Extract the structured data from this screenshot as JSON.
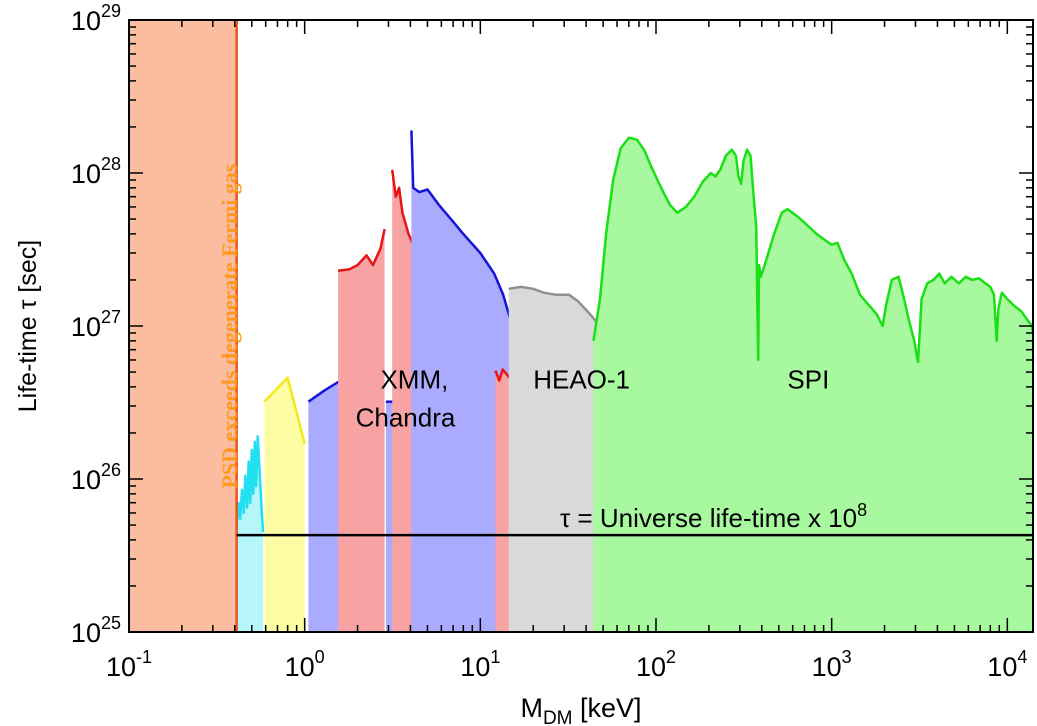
{
  "chart_data": {
    "type": "area",
    "xlabel": "M",
    "xlabel_sub": "DM",
    "xlabel_unit": " [keV]",
    "ylabel": "Life-time τ [sec]",
    "xscale": "log",
    "yscale": "log",
    "xlim": [
      0.1,
      14000
    ],
    "ylim": [
      1e+25,
      1e+29
    ],
    "x_ticks": [
      {
        "value": 0.1,
        "base": "10",
        "exp": "-1"
      },
      {
        "value": 1,
        "base": "10",
        "exp": "0"
      },
      {
        "value": 10,
        "base": "10",
        "exp": "1"
      },
      {
        "value": 100,
        "base": "10",
        "exp": "2"
      },
      {
        "value": 1000,
        "base": "10",
        "exp": "3"
      },
      {
        "value": 10000,
        "base": "10",
        "exp": "4"
      }
    ],
    "y_ticks": [
      {
        "value": 1e+25,
        "base": "10",
        "exp": "25"
      },
      {
        "value": 1e+26,
        "base": "10",
        "exp": "26"
      },
      {
        "value": 1e+27,
        "base": "10",
        "exp": "27"
      },
      {
        "value": 1e+28,
        "base": "10",
        "exp": "28"
      },
      {
        "value": 1e+29,
        "base": "10",
        "exp": "29"
      }
    ],
    "excluded_region": {
      "label": "PSD exceeds degenerate Fermi gas",
      "x_max": 0.41,
      "fill": "#fbbca0",
      "edge": "#e8541a",
      "label_color": "#ff9a1e"
    },
    "reference_line": {
      "label": "τ = Universe life-time x 10",
      "label_exp": "8",
      "y": 4.3e+25,
      "x_start": 0.41,
      "x_end": 14000
    },
    "region_labels": [
      {
        "id": "xmm",
        "lines": [
          "XMM,",
          "Chandra"
        ]
      },
      {
        "id": "heao",
        "lines": [
          "HEAO-1"
        ]
      },
      {
        "id": "spi",
        "lines": [
          "SPI"
        ]
      }
    ],
    "series": [
      {
        "id": "cyan",
        "fill": "#b6f6fb",
        "line": "#22e0f0",
        "points": [
          [
            0.41,
            5e+25
          ],
          [
            0.42,
            7e+25
          ],
          [
            0.43,
            5.5e+25
          ],
          [
            0.44,
            8.5e+25
          ],
          [
            0.45,
            6e+25
          ],
          [
            0.46,
            1.05e+26
          ],
          [
            0.47,
            6.5e+25
          ],
          [
            0.48,
            1.3e+26
          ],
          [
            0.49,
            7e+25
          ],
          [
            0.5,
            1.55e+26
          ],
          [
            0.51,
            8e+25
          ],
          [
            0.52,
            1.75e+26
          ],
          [
            0.53,
            9e+25
          ],
          [
            0.54,
            1.9e+26
          ],
          [
            0.555,
            1.1e+26
          ],
          [
            0.57,
            6e+25
          ],
          [
            0.58,
            4.5e+25
          ]
        ]
      },
      {
        "id": "yellow",
        "fill": "#fcfda4",
        "line": "#f2ea16",
        "points": [
          [
            0.59,
            3.2e+26
          ],
          [
            0.8,
            4.6e+26
          ],
          [
            1.0,
            1.7e+26
          ]
        ]
      },
      {
        "id": "blue-low",
        "fill": "#aaaaff",
        "line": "#1515d8",
        "points": [
          [
            1.05,
            3.2e+26
          ],
          [
            1.3,
            3.8e+26
          ],
          [
            1.6,
            4.4e+26
          ]
        ]
      },
      {
        "id": "red-xmm",
        "fill": "#f7a3a3",
        "line": "#e81515",
        "points": [
          [
            1.55,
            2.3e+27
          ],
          [
            1.8,
            2.35e+27
          ],
          [
            2.0,
            2.5e+27
          ],
          [
            2.25,
            2.9e+27
          ],
          [
            2.45,
            2.5e+27
          ],
          [
            2.7,
            3.2e+27
          ],
          [
            2.85,
            4.3e+27
          ]
        ]
      },
      {
        "id": "blue-mid",
        "fill": "#aaaaff",
        "line": "#1515d8",
        "points": [
          [
            2.9,
            3.2e+26
          ],
          [
            3.2,
            3.2e+26
          ]
        ]
      },
      {
        "id": "red-chandra",
        "fill": "#f7a3a3",
        "line": "#e81515",
        "points": [
          [
            3.15,
            1.05e+28
          ],
          [
            3.3,
            7e+27
          ],
          [
            3.45,
            8e+27
          ],
          [
            3.6,
            5.5e+27
          ],
          [
            3.9,
            4e+27
          ],
          [
            4.2,
            3.3e+27
          ],
          [
            4.6,
            2.5e+27
          ],
          [
            5.0,
            1.8e+27
          ],
          [
            5.5,
            1.6e+27
          ],
          [
            6.0,
            1.75e+27
          ],
          [
            6.5,
            1.55e+27
          ],
          [
            7.0,
            1.8e+27
          ],
          [
            7.6,
            1.5e+27
          ],
          [
            8.2,
            1.65e+27
          ],
          [
            9.0,
            1.3e+27
          ],
          [
            9.8,
            1.6e+27
          ],
          [
            10.4,
            1.2e+27
          ],
          [
            11.0,
            1e+27
          ],
          [
            11.5,
            6.8e+26
          ]
        ]
      },
      {
        "id": "blue-main",
        "fill": "#aaaaff",
        "line": "#1515d8",
        "points": [
          [
            4.05,
            1.9e+28
          ],
          [
            4.15,
            8e+27
          ],
          [
            4.5,
            7.5e+27
          ],
          [
            5.0,
            7.8e+27
          ],
          [
            5.8,
            6.2e+27
          ],
          [
            6.8,
            5e+27
          ],
          [
            8.0,
            4e+27
          ],
          [
            10.0,
            3e+27
          ],
          [
            12.0,
            2.2e+27
          ],
          [
            13.5,
            1.6e+27
          ],
          [
            15.0,
            1.05e+27
          ],
          [
            16.5,
            6.8e+26
          ],
          [
            18.0,
            4.2e+26
          ],
          [
            19.5,
            3.4e+26
          ],
          [
            21.0,
            1.8e+26
          ],
          [
            22.5,
            8e+25
          ],
          [
            23.5,
            4.3e+25
          ]
        ]
      },
      {
        "id": "red-small",
        "fill": "#f7a3a3",
        "line": "#e81515",
        "points": [
          [
            12.2,
            5.1e+26
          ],
          [
            12.8,
            4.4e+26
          ],
          [
            13.4,
            5.2e+26
          ],
          [
            14.0,
            4.9e+26
          ],
          [
            14.6,
            4.6e+26
          ]
        ]
      },
      {
        "id": "heao",
        "fill": "#d9d9d9",
        "line": "#909090",
        "points": [
          [
            14.5,
            1.75e+27
          ],
          [
            17.0,
            1.8e+27
          ],
          [
            20.0,
            1.75e+27
          ],
          [
            23.0,
            1.65e+27
          ],
          [
            27.0,
            1.6e+27
          ],
          [
            32.0,
            1.6e+27
          ],
          [
            36.0,
            1.45e+27
          ],
          [
            42.0,
            1.2e+27
          ],
          [
            48.0,
            1e+27
          ],
          [
            55.0,
            9e+26
          ],
          [
            63.0,
            9.5e+26
          ],
          [
            70.0,
            1.05e+27
          ],
          [
            77.0,
            1e+27
          ],
          [
            85.0,
            7.5e+26
          ],
          [
            93.0,
            5e+26
          ],
          [
            100.0,
            4.2e+26
          ]
        ]
      },
      {
        "id": "spi",
        "fill": "#a8f8a0",
        "line": "#1be015",
        "points": [
          [
            44,
            8e+26
          ],
          [
            48,
            1.5e+27
          ],
          [
            52,
            4e+27
          ],
          [
            57,
            9e+27
          ],
          [
            63,
            1.45e+28
          ],
          [
            70,
            1.7e+28
          ],
          [
            78,
            1.65e+28
          ],
          [
            86,
            1.4e+28
          ],
          [
            94,
            1.1e+28
          ],
          [
            102,
            9e+27
          ],
          [
            110,
            7.5e+27
          ],
          [
            120,
            6.2e+27
          ],
          [
            132,
            5.5e+27
          ],
          [
            148,
            6e+27
          ],
          [
            165,
            7e+27
          ],
          [
            185,
            8.8e+27
          ],
          [
            205,
            1e+28
          ],
          [
            218,
            9.5e+27
          ],
          [
            232,
            1.05e+28
          ],
          [
            250,
            1.3e+28
          ],
          [
            270,
            1.42e+28
          ],
          [
            285,
            1.3e+28
          ],
          [
            295,
            9.5e+27
          ],
          [
            305,
            8.5e+27
          ],
          [
            315,
            1.2e+28
          ],
          [
            330,
            1.42e+28
          ],
          [
            345,
            1.3e+28
          ],
          [
            360,
            7e+27
          ],
          [
            372,
            4.5e+27
          ],
          [
            382,
            6e+26
          ],
          [
            386,
            2.5e+27
          ],
          [
            395,
            2.1e+27
          ],
          [
            420,
            2.6e+27
          ],
          [
            470,
            4e+27
          ],
          [
            520,
            5.5e+27
          ],
          [
            560,
            5.8e+27
          ],
          [
            640,
            5.2e+27
          ],
          [
            720,
            4.6e+27
          ],
          [
            820,
            4e+27
          ],
          [
            930,
            3.6e+27
          ],
          [
            1000,
            3.4e+27
          ],
          [
            1080,
            3.5e+27
          ],
          [
            1180,
            2.7e+27
          ],
          [
            1300,
            2.2e+27
          ],
          [
            1450,
            1.6e+27
          ],
          [
            1600,
            1.4e+27
          ],
          [
            1800,
            1.2e+27
          ],
          [
            1950,
            1e+27
          ],
          [
            2050,
            1.4e+27
          ],
          [
            2200,
            2e+27
          ],
          [
            2400,
            2.1e+27
          ],
          [
            2550,
            1.6e+27
          ],
          [
            2750,
            1.1e+27
          ],
          [
            2950,
            8e+26
          ],
          [
            3100,
            5.8e+26
          ],
          [
            3250,
            1.5e+27
          ],
          [
            3500,
            1.9e+27
          ],
          [
            3800,
            2e+27
          ],
          [
            4100,
            2.2e+27
          ],
          [
            4400,
            1.9e+27
          ],
          [
            4800,
            2.1e+27
          ],
          [
            5300,
            1.9e+27
          ],
          [
            5800,
            2.1e+27
          ],
          [
            6300,
            2e+27
          ],
          [
            6900,
            2.05e+27
          ],
          [
            7500,
            1.9e+27
          ],
          [
            8000,
            1.8e+27
          ],
          [
            8400,
            1.6e+27
          ],
          [
            8700,
            8e+26
          ],
          [
            8900,
            1.3e+27
          ],
          [
            9300,
            1.65e+27
          ],
          [
            10000,
            1.5e+27
          ],
          [
            11000,
            1.35e+27
          ],
          [
            12000,
            1.25e+27
          ],
          [
            13000,
            1.1e+27
          ],
          [
            13800,
            1e+27
          ],
          [
            14000,
            9e+26
          ]
        ]
      }
    ]
  }
}
